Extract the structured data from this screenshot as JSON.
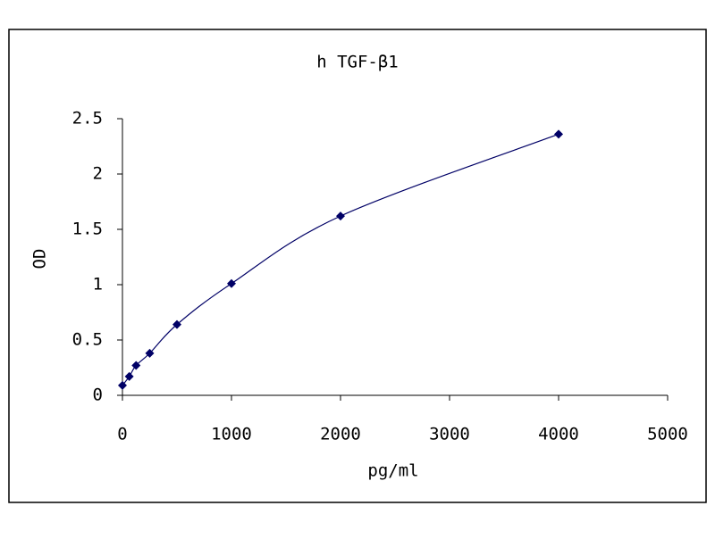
{
  "chart_data": {
    "type": "scatter",
    "title": "h TGF-β1",
    "x_label": "pg/ml",
    "y_label": "OD",
    "series": [
      {
        "color": "#000066",
        "x": [
          0,
          62.5,
          125,
          250,
          500,
          1000,
          2000,
          4000
        ],
        "values": [
          0.09,
          0.17,
          0.27,
          0.38,
          0.64,
          1.01,
          1.62,
          2.36
        ]
      }
    ],
    "xlim": [
      0,
      5000
    ],
    "xticks": [
      0,
      1000,
      2000,
      3000,
      4000,
      5000
    ],
    "ylim": [
      0,
      2.5
    ],
    "yticks": [
      0,
      0.5,
      1,
      1.5,
      2,
      2.5
    ],
    "grid": false,
    "smooth_line": true
  }
}
